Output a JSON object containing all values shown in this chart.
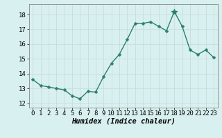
{
  "x": [
    0,
    1,
    2,
    3,
    4,
    5,
    6,
    7,
    8,
    9,
    10,
    11,
    12,
    13,
    14,
    15,
    16,
    17,
    18,
    19,
    20,
    21,
    22,
    23
  ],
  "y": [
    13.6,
    13.2,
    13.1,
    13.0,
    12.9,
    12.5,
    12.3,
    12.8,
    12.75,
    13.8,
    14.7,
    15.3,
    16.3,
    17.4,
    17.4,
    17.5,
    17.2,
    16.9,
    18.2,
    17.2,
    15.6,
    15.3,
    15.6,
    15.1
  ],
  "line_color": "#2d7f6e",
  "marker": "D",
  "marker_size": 2.5,
  "bg_color": "#d8f0ef",
  "grid_color": "#c8dede",
  "grid_major_color": "#b0cccc",
  "xlabel": "Humidex (Indice chaleur)",
  "ylim": [
    11.7,
    18.7
  ],
  "xlim": [
    -0.5,
    23.5
  ],
  "yticks": [
    12,
    13,
    14,
    15,
    16,
    17,
    18
  ],
  "xticks": [
    0,
    1,
    2,
    3,
    4,
    5,
    6,
    7,
    8,
    9,
    10,
    11,
    12,
    13,
    14,
    15,
    16,
    17,
    18,
    19,
    20,
    21,
    22,
    23
  ],
  "tick_fontsize": 6.5,
  "xlabel_fontsize": 7.5,
  "line_width": 1.0,
  "special_marker_idx": 18
}
